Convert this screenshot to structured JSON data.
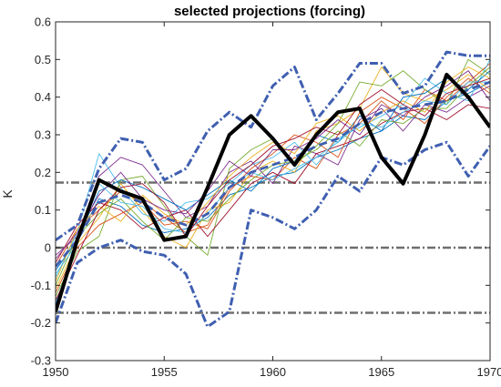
{
  "chart_data": {
    "type": "line",
    "title": "selected projections (forcing)",
    "xlabel": "",
    "ylabel": "K",
    "xlim": [
      1950,
      1970
    ],
    "ylim": [
      -0.3,
      0.6
    ],
    "x_ticks": [
      1950,
      1955,
      1960,
      1965,
      1970
    ],
    "y_ticks": [
      -0.3,
      -0.2,
      -0.1,
      0,
      0.1,
      0.2,
      0.3,
      0.4,
      0.5,
      0.6
    ],
    "x_tick_labels": [
      "1950",
      "1955",
      "1960",
      "1965",
      "1970"
    ],
    "y_tick_labels": [
      "-0.3",
      "-0.2",
      "-0.1",
      "0",
      "0.1",
      "0.2",
      "0.3",
      "0.4",
      "0.5",
      "0.6"
    ],
    "grid": false,
    "x": [
      1950,
      1951,
      1952,
      1953,
      1954,
      1955,
      1956,
      1957,
      1958,
      1959,
      1960,
      1961,
      1962,
      1963,
      1964,
      1965,
      1966,
      1967,
      1968,
      1969,
      1970
    ],
    "series": [
      {
        "role": "ensemble",
        "color": "#0072bd",
        "values": [
          -0.15,
          0.02,
          0.13,
          0.11,
          0.06,
          0.04,
          0.05,
          0.08,
          0.14,
          0.16,
          0.19,
          0.2,
          0.24,
          0.26,
          0.29,
          0.31,
          0.35,
          0.34,
          0.39,
          0.41,
          0.44
        ]
      },
      {
        "role": "ensemble",
        "color": "#d95319",
        "values": [
          -0.05,
          0.05,
          0.1,
          0.15,
          0.12,
          0.08,
          0.04,
          0.06,
          0.16,
          0.19,
          0.18,
          0.24,
          0.21,
          0.3,
          0.33,
          0.39,
          0.34,
          0.42,
          0.39,
          0.44,
          0.49
        ]
      },
      {
        "role": "ensemble",
        "color": "#edb120",
        "values": [
          -0.11,
          0.01,
          0.08,
          0.17,
          0.1,
          0.03,
          0.0,
          0.1,
          0.12,
          0.2,
          0.23,
          0.2,
          0.31,
          0.33,
          0.37,
          0.48,
          0.41,
          0.39,
          0.42,
          0.46,
          0.42
        ]
      },
      {
        "role": "ensemble",
        "color": "#7e2f8e",
        "values": [
          -0.02,
          0.03,
          0.19,
          0.24,
          0.22,
          0.15,
          0.08,
          0.11,
          0.2,
          0.23,
          0.17,
          0.27,
          0.25,
          0.22,
          0.34,
          0.37,
          0.31,
          0.38,
          0.36,
          0.4,
          0.43
        ]
      },
      {
        "role": "ensemble",
        "color": "#77ac30",
        "values": [
          -0.13,
          -0.01,
          0.03,
          0.18,
          0.19,
          0.11,
          0.03,
          -0.02,
          0.21,
          0.26,
          0.29,
          0.22,
          0.27,
          0.33,
          0.44,
          0.43,
          0.47,
          0.42,
          0.38,
          0.5,
          0.46
        ]
      },
      {
        "role": "ensemble",
        "color": "#4dbeee",
        "values": [
          -0.08,
          0.04,
          0.25,
          0.16,
          0.09,
          0.07,
          0.12,
          0.13,
          0.17,
          0.22,
          0.24,
          0.28,
          0.22,
          0.29,
          0.32,
          0.35,
          0.38,
          0.45,
          0.41,
          0.39,
          0.5
        ]
      },
      {
        "role": "ensemble",
        "color": "#a2142f",
        "values": [
          -0.04,
          0.06,
          0.12,
          0.1,
          0.05,
          0.08,
          0.1,
          0.03,
          0.1,
          0.17,
          0.2,
          0.17,
          0.25,
          0.27,
          0.29,
          0.33,
          0.36,
          0.37,
          0.34,
          0.38,
          0.37
        ]
      },
      {
        "role": "ensemble",
        "color": "#0072bd",
        "values": [
          -0.06,
          0.02,
          0.15,
          0.18,
          0.16,
          0.13,
          0.1,
          0.14,
          0.18,
          0.15,
          0.21,
          0.23,
          0.3,
          0.28,
          0.35,
          0.31,
          0.4,
          0.41,
          0.45,
          0.42,
          0.47
        ]
      },
      {
        "role": "ensemble",
        "color": "#d95319",
        "values": [
          -0.12,
          0.0,
          0.06,
          0.09,
          0.12,
          0.06,
          0.07,
          0.05,
          0.15,
          0.21,
          0.25,
          0.3,
          0.28,
          0.24,
          0.36,
          0.4,
          0.37,
          0.33,
          0.4,
          0.45,
          0.41
        ]
      },
      {
        "role": "ensemble",
        "color": "#edb120",
        "values": [
          -0.09,
          0.05,
          0.11,
          0.07,
          0.14,
          0.09,
          0.06,
          0.12,
          0.19,
          0.24,
          0.28,
          0.25,
          0.33,
          0.35,
          0.31,
          0.36,
          0.39,
          0.36,
          0.44,
          0.48,
          0.45
        ]
      },
      {
        "role": "ensemble",
        "color": "#7e2f8e",
        "values": [
          -0.03,
          0.04,
          0.14,
          0.2,
          0.13,
          0.1,
          0.09,
          0.15,
          0.23,
          0.19,
          0.26,
          0.26,
          0.29,
          0.34,
          0.3,
          0.38,
          0.35,
          0.4,
          0.43,
          0.47,
          0.39
        ]
      },
      {
        "role": "ensemble",
        "color": "#77ac30",
        "values": [
          -0.1,
          0.03,
          0.09,
          0.13,
          0.07,
          0.02,
          0.08,
          0.07,
          0.13,
          0.18,
          0.22,
          0.23,
          0.26,
          0.31,
          0.27,
          0.34,
          0.33,
          0.37,
          0.37,
          0.43,
          0.48
        ]
      },
      {
        "role": "ensemble",
        "color": "#4dbeee",
        "values": [
          -0.07,
          0.01,
          0.17,
          0.12,
          0.11,
          0.05,
          0.04,
          0.09,
          0.16,
          0.2,
          0.18,
          0.21,
          0.24,
          0.28,
          0.33,
          0.32,
          0.36,
          0.39,
          0.38,
          0.44,
          0.44
        ]
      },
      {
        "role": "ensemble",
        "color": "#a2142f",
        "values": [
          -0.14,
          -0.02,
          0.1,
          0.16,
          0.17,
          0.12,
          0.03,
          0.11,
          0.18,
          0.22,
          0.27,
          0.29,
          0.32,
          0.3,
          0.38,
          0.42,
          0.38,
          0.35,
          0.41,
          0.43,
          0.45
        ]
      },
      {
        "role": "ensemble-mean",
        "color": "#3f5fb0",
        "style": "dashed",
        "values": [
          -0.05,
          0.02,
          0.12,
          0.14,
          0.12,
          0.08,
          0.06,
          0.09,
          0.16,
          0.2,
          0.22,
          0.24,
          0.27,
          0.29,
          0.33,
          0.36,
          0.37,
          0.38,
          0.39,
          0.42,
          0.44
        ]
      },
      {
        "role": "envelope-upper",
        "color": "#3f5fb0",
        "style": "dashdot",
        "values": [
          0.02,
          0.06,
          0.21,
          0.29,
          0.28,
          0.18,
          0.21,
          0.31,
          0.36,
          0.32,
          0.43,
          0.48,
          0.34,
          0.41,
          0.49,
          0.49,
          0.41,
          0.43,
          0.52,
          0.51,
          0.51
        ]
      },
      {
        "role": "envelope-lower",
        "color": "#3f5fb0",
        "style": "dashdot",
        "values": [
          -0.2,
          -0.04,
          0.0,
          0.02,
          -0.01,
          -0.02,
          -0.07,
          -0.21,
          -0.17,
          0.1,
          0.08,
          0.05,
          0.1,
          0.19,
          0.15,
          0.24,
          0.22,
          0.26,
          0.28,
          0.19,
          0.27
        ]
      },
      {
        "role": "observations",
        "color": "#000000",
        "style": "solid-bold",
        "values": [
          -0.17,
          0.02,
          0.18,
          0.15,
          0.13,
          0.02,
          0.03,
          0.16,
          0.3,
          0.35,
          0.29,
          0.22,
          0.3,
          0.36,
          0.37,
          0.24,
          0.17,
          0.3,
          0.46,
          0.4,
          0.32
        ]
      }
    ],
    "reference_lines": [
      {
        "y": 0.173,
        "color": "#6e6e6e",
        "style": "dashdot"
      },
      {
        "y": 0,
        "color": "#6e6e6e",
        "style": "dashdot"
      },
      {
        "y": -0.173,
        "color": "#6e6e6e",
        "style": "dashdot"
      }
    ]
  }
}
